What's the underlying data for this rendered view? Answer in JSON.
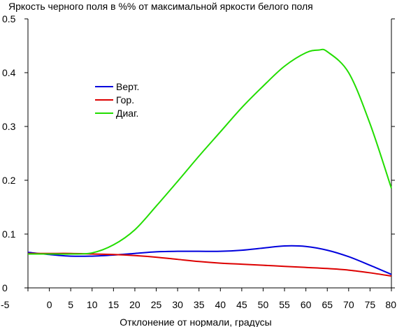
{
  "chart_data": {
    "type": "line",
    "title": "Яркость черного поля в %% от максимальной яркости белого поля",
    "xlabel": "Отклонение от нормали, градусы",
    "ylabel": "",
    "xlim": [
      -5,
      80
    ],
    "ylim": [
      0,
      0.5
    ],
    "x_ticks": [
      "-5",
      "0",
      "5",
      "10",
      "15",
      "20",
      "25",
      "30",
      "35",
      "40",
      "45",
      "50",
      "55",
      "60",
      "65",
      "70",
      "75",
      "80"
    ],
    "y_ticks": [
      "0",
      "0.1",
      "0.2",
      "0.3",
      "0.4",
      "0.5"
    ],
    "grid": false,
    "legend_position": "upper-left-center",
    "series": [
      {
        "name": "Верт.",
        "color": "#0000dd",
        "x": [
          -5,
          0,
          5,
          10,
          15,
          20,
          25,
          30,
          35,
          40,
          45,
          50,
          55,
          60,
          65,
          70,
          75,
          80
        ],
        "y": [
          0.066,
          0.062,
          0.059,
          0.059,
          0.061,
          0.064,
          0.067,
          0.068,
          0.068,
          0.068,
          0.07,
          0.074,
          0.078,
          0.077,
          0.07,
          0.058,
          0.042,
          0.025
        ]
      },
      {
        "name": "Гор.",
        "color": "#dd0000",
        "x": [
          -5,
          0,
          5,
          10,
          15,
          20,
          25,
          30,
          35,
          40,
          45,
          50,
          55,
          60,
          65,
          70,
          75,
          80
        ],
        "y": [
          0.064,
          0.064,
          0.064,
          0.063,
          0.062,
          0.06,
          0.057,
          0.053,
          0.049,
          0.046,
          0.044,
          0.042,
          0.04,
          0.038,
          0.036,
          0.033,
          0.028,
          0.022
        ]
      },
      {
        "name": "Диаг.",
        "color": "#22dd00",
        "x": [
          -5,
          0,
          5,
          10,
          15,
          20,
          25,
          30,
          35,
          40,
          45,
          50,
          55,
          60,
          63,
          65,
          70,
          75,
          80
        ],
        "y": [
          0.063,
          0.063,
          0.063,
          0.065,
          0.08,
          0.108,
          0.152,
          0.198,
          0.245,
          0.29,
          0.335,
          0.375,
          0.412,
          0.437,
          0.442,
          0.439,
          0.4,
          0.305,
          0.185
        ]
      }
    ]
  }
}
